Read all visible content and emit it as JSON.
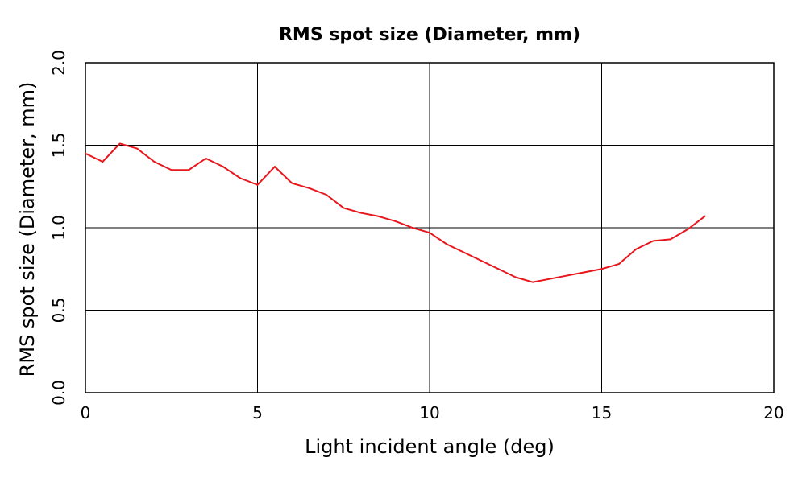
{
  "chart_data": {
    "type": "line",
    "title": "RMS spot size (Diameter, mm)",
    "xlabel": "Light incident angle (deg)",
    "ylabel": "RMS spot size (Diameter, mm)",
    "xlim": [
      0,
      20
    ],
    "ylim": [
      0.0,
      2.0
    ],
    "x_ticks": [
      "0",
      "5",
      "10",
      "15",
      "20"
    ],
    "y_ticks": [
      "0.0",
      "0.5",
      "1.0",
      "1.5",
      "2.0"
    ],
    "grid": true,
    "legend": "none",
    "series": [
      {
        "color": "#e8161d",
        "x": [
          0,
          0.5,
          1.0,
          1.5,
          2.0,
          2.5,
          3.0,
          3.5,
          4.0,
          4.5,
          5.0,
          5.5,
          6.0,
          6.5,
          7.0,
          7.5,
          8.0,
          8.5,
          9.0,
          9.5,
          10.0,
          10.5,
          11.0,
          11.5,
          12.0,
          12.5,
          13.0,
          13.5,
          14.0,
          14.5,
          15.0,
          15.5,
          16.0,
          16.5,
          17.0,
          17.5,
          18.0
        ],
        "y": [
          1.45,
          1.4,
          1.51,
          1.48,
          1.4,
          1.35,
          1.35,
          1.42,
          1.37,
          1.3,
          1.26,
          1.37,
          1.27,
          1.24,
          1.2,
          1.12,
          1.09,
          1.07,
          1.04,
          1.0,
          0.97,
          0.9,
          0.85,
          0.8,
          0.75,
          0.7,
          0.67,
          0.69,
          0.71,
          0.73,
          0.75,
          0.78,
          0.87,
          0.92,
          0.93,
          0.99,
          1.07
        ]
      }
    ]
  },
  "colors": {
    "axis": "#000000",
    "grid": "#000000",
    "line": "#e8161d"
  }
}
